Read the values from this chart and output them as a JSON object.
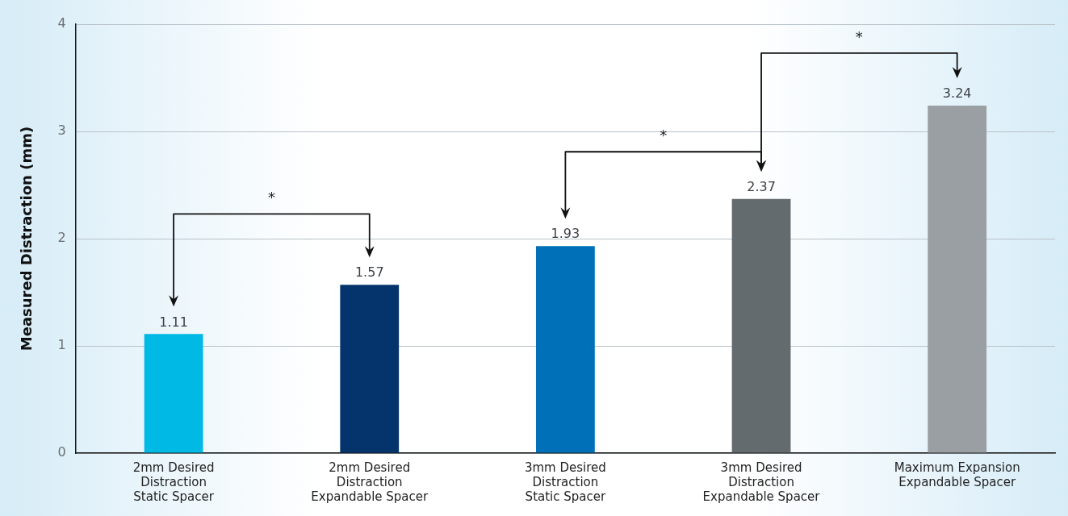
{
  "chart_data": {
    "type": "bar",
    "ylabel": "Measured Distraction (mm)",
    "categories": [
      "2mm Desired\nDistraction\nStatic Spacer",
      "2mm Desired\nDistraction\nExpandable Spacer",
      "3mm Desired\nDistraction\nStatic Spacer",
      "3mm Desired\nDistraction\nExpandable Spacer",
      "Maximum Expansion\nExpandable Spacer"
    ],
    "values": [
      1.11,
      1.57,
      1.93,
      2.37,
      3.24
    ],
    "colors": [
      "#00b9e4",
      "#05336b",
      "#0071b9",
      "#646b6e",
      "#9a9fa3"
    ],
    "ylim": [
      0,
      4
    ],
    "yticks": [
      0,
      1,
      2,
      3,
      4
    ],
    "grid": "y",
    "data_labels": true,
    "annotations": [
      "*",
      "*",
      "*"
    ]
  }
}
